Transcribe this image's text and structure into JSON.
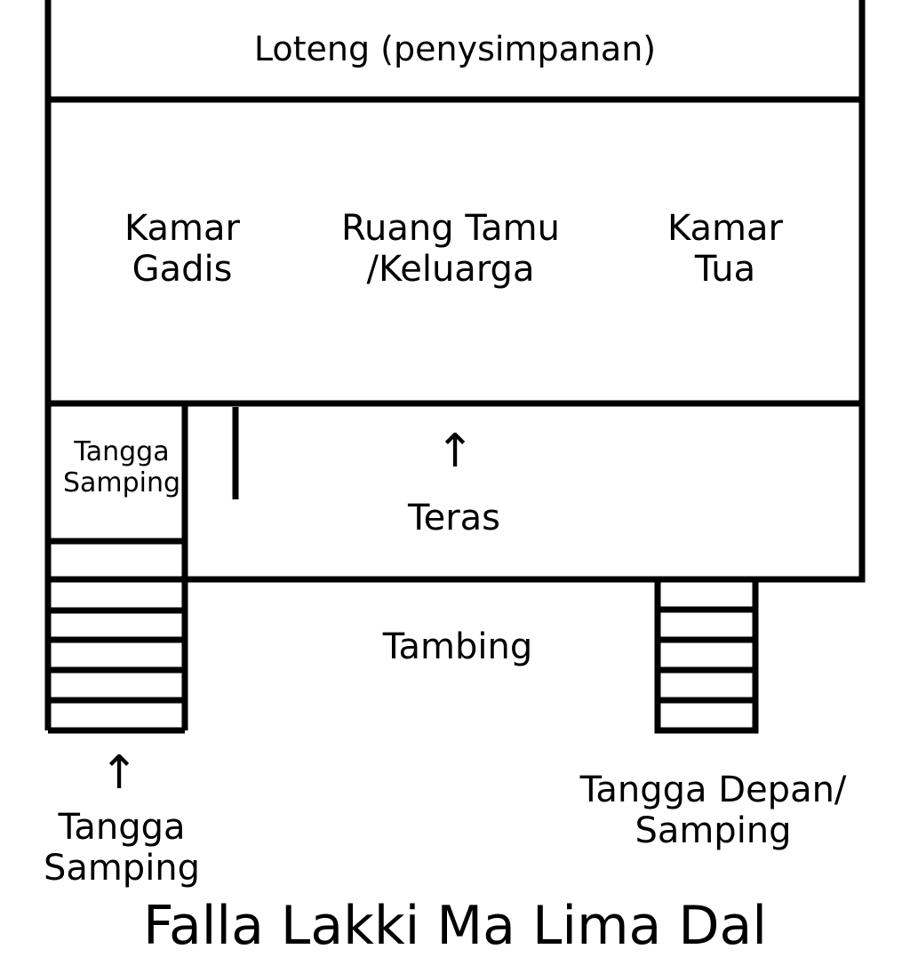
{
  "diagram": {
    "loteng": "Loteng (penysimpanan)",
    "kamar_gadis": "Kamar\nGadis",
    "ruang_tamu": "Ruang Tamu\n/Keluarga",
    "kamar_tua": "Kamar\nTua",
    "tangga_samping_inner": "Tangga\nSamping",
    "teras": "Teras",
    "tambing": "Tambing",
    "tangga_samping_outer": "Tangga\nSamping",
    "tangga_depan": "Tangga Depan/\nSamping",
    "footer_partial": "Falla Lakki Ma Lima Dal"
  },
  "icons": {
    "teras_arrow": "up-arrow-icon",
    "tangga_arrow": "up-arrow-icon"
  }
}
